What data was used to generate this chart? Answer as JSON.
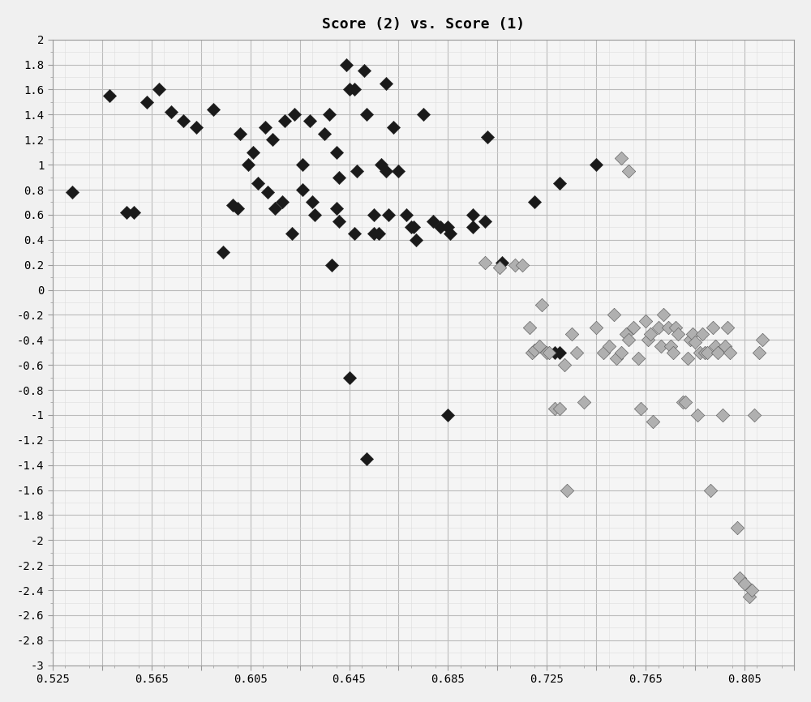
{
  "title": "Score (2) vs. Score (1)",
  "xlim": [
    0.525,
    0.825
  ],
  "ylim": [
    -3.0,
    2.0
  ],
  "xticks": [
    0.525,
    0.545,
    0.565,
    0.585,
    0.605,
    0.625,
    0.645,
    0.665,
    0.685,
    0.705,
    0.725,
    0.745,
    0.765,
    0.785,
    0.805,
    0.825
  ],
  "xtick_labels": [
    "0.525",
    "",
    "0.565",
    "",
    "0.605",
    "",
    "0.645",
    "",
    "0.685",
    "",
    "0.725",
    "",
    "0.765",
    "",
    "0.805",
    ""
  ],
  "yticks": [
    -3.0,
    -2.8,
    -2.6,
    -2.4,
    -2.2,
    -2.0,
    -1.8,
    -1.6,
    -1.4,
    -1.2,
    -1.0,
    -0.8,
    -0.6,
    -0.4,
    -0.2,
    0.0,
    0.2,
    0.4,
    0.6,
    0.8,
    1.0,
    1.2,
    1.4,
    1.6,
    1.8,
    2.0
  ],
  "ytick_labels": [
    "-3",
    "-2.8",
    "-2.6",
    "-2.4",
    "-2.2",
    "-2",
    "-1.8",
    "-1.6",
    "-1.4",
    "-1.2",
    "-1",
    "-0.8",
    "-0.6",
    "-0.4",
    "-0.2",
    "0",
    "0.2",
    "0.4",
    "0.6",
    "0.8",
    "1",
    "1.2",
    "1.4",
    "1.6",
    "1.8",
    "2"
  ],
  "dark_points": [
    [
      0.533,
      0.78
    ],
    [
      0.548,
      1.55
    ],
    [
      0.555,
      0.62
    ],
    [
      0.558,
      0.62
    ],
    [
      0.563,
      1.5
    ],
    [
      0.568,
      1.6
    ],
    [
      0.573,
      1.42
    ],
    [
      0.578,
      1.35
    ],
    [
      0.583,
      1.3
    ],
    [
      0.59,
      1.44
    ],
    [
      0.594,
      0.3
    ],
    [
      0.598,
      0.68
    ],
    [
      0.6,
      0.65
    ],
    [
      0.601,
      1.25
    ],
    [
      0.604,
      1.0
    ],
    [
      0.606,
      1.1
    ],
    [
      0.608,
      0.85
    ],
    [
      0.611,
      1.3
    ],
    [
      0.612,
      0.78
    ],
    [
      0.614,
      1.2
    ],
    [
      0.615,
      0.65
    ],
    [
      0.618,
      0.7
    ],
    [
      0.619,
      1.35
    ],
    [
      0.622,
      0.45
    ],
    [
      0.623,
      1.4
    ],
    [
      0.626,
      0.8
    ],
    [
      0.626,
      1.0
    ],
    [
      0.629,
      1.35
    ],
    [
      0.63,
      0.7
    ],
    [
      0.631,
      0.6
    ],
    [
      0.635,
      1.25
    ],
    [
      0.637,
      1.4
    ],
    [
      0.638,
      0.2
    ],
    [
      0.64,
      1.1
    ],
    [
      0.64,
      0.65
    ],
    [
      0.641,
      0.9
    ],
    [
      0.641,
      0.55
    ],
    [
      0.644,
      1.8
    ],
    [
      0.645,
      1.6
    ],
    [
      0.647,
      1.6
    ],
    [
      0.647,
      0.45
    ],
    [
      0.648,
      0.95
    ],
    [
      0.651,
      1.75
    ],
    [
      0.652,
      1.4
    ],
    [
      0.655,
      0.6
    ],
    [
      0.655,
      0.45
    ],
    [
      0.657,
      0.45
    ],
    [
      0.658,
      1.0
    ],
    [
      0.66,
      1.65
    ],
    [
      0.66,
      0.95
    ],
    [
      0.661,
      0.6
    ],
    [
      0.663,
      1.3
    ],
    [
      0.665,
      0.95
    ],
    [
      0.668,
      0.6
    ],
    [
      0.67,
      0.5
    ],
    [
      0.671,
      0.5
    ],
    [
      0.672,
      0.4
    ],
    [
      0.675,
      1.4
    ],
    [
      0.679,
      0.55
    ],
    [
      0.682,
      0.5
    ],
    [
      0.685,
      0.5
    ],
    [
      0.686,
      0.45
    ],
    [
      0.695,
      0.6
    ],
    [
      0.695,
      0.5
    ],
    [
      0.7,
      0.55
    ],
    [
      0.701,
      1.22
    ],
    [
      0.707,
      0.22
    ],
    [
      0.645,
      -0.7
    ],
    [
      0.685,
      -1.0
    ],
    [
      0.652,
      -1.35
    ],
    [
      0.72,
      0.7
    ],
    [
      0.73,
      0.85
    ],
    [
      0.745,
      1.0
    ],
    [
      0.728,
      -0.5
    ],
    [
      0.73,
      -0.5
    ]
  ],
  "light_points": [
    [
      0.7,
      0.22
    ],
    [
      0.706,
      0.18
    ],
    [
      0.712,
      0.2
    ],
    [
      0.715,
      0.2
    ],
    [
      0.718,
      -0.3
    ],
    [
      0.719,
      -0.5
    ],
    [
      0.72,
      -0.48
    ],
    [
      0.722,
      -0.45
    ],
    [
      0.723,
      -0.12
    ],
    [
      0.725,
      -0.5
    ],
    [
      0.726,
      -0.5
    ],
    [
      0.728,
      -0.95
    ],
    [
      0.73,
      -0.95
    ],
    [
      0.732,
      -0.6
    ],
    [
      0.733,
      -1.6
    ],
    [
      0.735,
      -0.35
    ],
    [
      0.737,
      -0.5
    ],
    [
      0.74,
      -0.9
    ],
    [
      0.745,
      -0.3
    ],
    [
      0.748,
      -0.5
    ],
    [
      0.75,
      -0.45
    ],
    [
      0.752,
      -0.2
    ],
    [
      0.753,
      -0.55
    ],
    [
      0.755,
      -0.5
    ],
    [
      0.757,
      -0.35
    ],
    [
      0.758,
      -0.4
    ],
    [
      0.76,
      -0.3
    ],
    [
      0.762,
      -0.55
    ],
    [
      0.763,
      -0.95
    ],
    [
      0.765,
      -0.25
    ],
    [
      0.766,
      -0.4
    ],
    [
      0.767,
      -0.35
    ],
    [
      0.77,
      -0.3
    ],
    [
      0.771,
      -0.45
    ],
    [
      0.772,
      -0.2
    ],
    [
      0.774,
      -0.3
    ],
    [
      0.775,
      -0.45
    ],
    [
      0.776,
      -0.5
    ],
    [
      0.777,
      -0.3
    ],
    [
      0.778,
      -0.35
    ],
    [
      0.78,
      -0.9
    ],
    [
      0.781,
      -0.9
    ],
    [
      0.782,
      -0.55
    ],
    [
      0.783,
      -0.4
    ],
    [
      0.784,
      -0.35
    ],
    [
      0.785,
      -0.42
    ],
    [
      0.786,
      -1.0
    ],
    [
      0.787,
      -0.5
    ],
    [
      0.788,
      -0.35
    ],
    [
      0.789,
      -0.5
    ],
    [
      0.79,
      -0.5
    ],
    [
      0.791,
      -1.6
    ],
    [
      0.792,
      -0.3
    ],
    [
      0.793,
      -0.45
    ],
    [
      0.794,
      -0.5
    ],
    [
      0.796,
      -1.0
    ],
    [
      0.797,
      -0.45
    ],
    [
      0.798,
      -0.3
    ],
    [
      0.799,
      -0.5
    ],
    [
      0.802,
      -1.9
    ],
    [
      0.803,
      -2.3
    ],
    [
      0.805,
      -2.35
    ],
    [
      0.807,
      -2.45
    ],
    [
      0.808,
      -2.4
    ],
    [
      0.809,
      -1.0
    ],
    [
      0.811,
      -0.5
    ],
    [
      0.812,
      -0.4
    ],
    [
      0.755,
      1.05
    ],
    [
      0.758,
      0.95
    ],
    [
      0.768,
      -1.05
    ]
  ],
  "dark_color": "#1a1a1a",
  "light_color": "#b0b0b0",
  "light_edge_color": "#666666",
  "marker_size": 70,
  "bg_color": "#f0f0f0",
  "plot_bg_color": "#f5f5f5",
  "grid_major_color": "#bbbbbb",
  "grid_minor_color": "#dddddd",
  "title_fontsize": 13,
  "tick_fontsize": 10,
  "font_family": "monospace"
}
